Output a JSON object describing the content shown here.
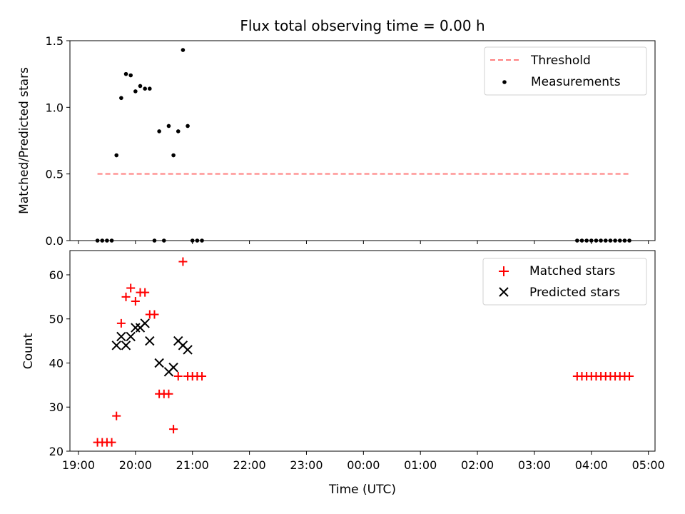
{
  "chart_data": [
    {
      "type": "scatter",
      "title": "Flux total observing time = 0.00 h",
      "ylabel": "Matched/Predicted stars",
      "xlabel": "",
      "xlim": [
        "18:51",
        "05:07"
      ],
      "ylim": [
        0,
        1.5
      ],
      "y_ticks": [
        "0.0",
        "0.5",
        "1.0",
        "1.5"
      ],
      "legend_position": "top-right",
      "grid": false,
      "series": [
        {
          "name": "Threshold",
          "kind": "line",
          "style": "dashed",
          "color": "#ff7f7f",
          "x": [
            "19:20",
            "04:40"
          ],
          "y": [
            0.5,
            0.5
          ]
        },
        {
          "name": "Measurements",
          "kind": "scatter",
          "marker": "dot",
          "color": "#000000",
          "x": [
            "19:20",
            "19:25",
            "19:30",
            "19:35",
            "19:40",
            "19:45",
            "19:50",
            "19:55",
            "20:00",
            "20:05",
            "20:10",
            "20:15",
            "20:20",
            "20:25",
            "20:30",
            "20:35",
            "20:40",
            "20:45",
            "20:50",
            "20:55",
            "21:00",
            "21:05",
            "21:10",
            "03:45",
            "03:50",
            "03:55",
            "04:00",
            "04:05",
            "04:10",
            "04:15",
            "04:20",
            "04:25",
            "04:30",
            "04:35",
            "04:40"
          ],
          "y": [
            0,
            0,
            0,
            0,
            0.64,
            1.07,
            1.25,
            1.24,
            1.12,
            1.16,
            1.14,
            1.14,
            0,
            0.82,
            0,
            0.86,
            0.64,
            0.82,
            1.43,
            0.86,
            0,
            0,
            0,
            0,
            0,
            0,
            0,
            0,
            0,
            0,
            0,
            0,
            0,
            0,
            0
          ]
        }
      ]
    },
    {
      "type": "scatter",
      "title": "",
      "ylabel": "Count",
      "xlabel": "Time (UTC)",
      "xlim": [
        "18:51",
        "05:07"
      ],
      "ylim": [
        20,
        65.5
      ],
      "y_ticks": [
        "20",
        "30",
        "40",
        "50",
        "60"
      ],
      "x_ticks": [
        "19:00",
        "20:00",
        "21:00",
        "22:00",
        "23:00",
        "00:00",
        "01:00",
        "02:00",
        "03:00",
        "04:00",
        "05:00"
      ],
      "legend_position": "top-right",
      "grid": false,
      "series": [
        {
          "name": "Matched stars",
          "kind": "scatter",
          "marker": "plus",
          "color": "#ff0000",
          "x": [
            "19:20",
            "19:25",
            "19:30",
            "19:35",
            "19:40",
            "19:45",
            "19:50",
            "19:55",
            "20:00",
            "20:05",
            "20:10",
            "20:15",
            "20:20",
            "20:25",
            "20:30",
            "20:35",
            "20:40",
            "20:45",
            "20:50",
            "20:55",
            "21:00",
            "21:05",
            "21:10",
            "03:45",
            "03:50",
            "03:55",
            "04:00",
            "04:05",
            "04:10",
            "04:15",
            "04:20",
            "04:25",
            "04:30",
            "04:35",
            "04:40"
          ],
          "y": [
            22,
            22,
            22,
            22,
            28,
            49,
            55,
            57,
            54,
            56,
            56,
            51,
            51,
            33,
            33,
            33,
            25,
            37,
            63,
            37,
            37,
            37,
            37,
            37,
            37,
            37,
            37,
            37,
            37,
            37,
            37,
            37,
            37,
            37,
            37
          ]
        },
        {
          "name": "Predicted stars",
          "kind": "scatter",
          "marker": "x",
          "color": "#000000",
          "x": [
            "19:40",
            "19:45",
            "19:50",
            "19:55",
            "20:00",
            "20:05",
            "20:10",
            "20:15",
            "20:25",
            "20:35",
            "20:40",
            "20:45",
            "20:50",
            "20:55"
          ],
          "y": [
            44,
            46,
            44,
            46,
            48,
            48,
            49,
            45,
            40,
            38,
            39,
            45,
            44,
            43
          ]
        }
      ]
    }
  ],
  "colors": {
    "threshold": "#ff7f7f",
    "measurements": "#000000",
    "matched": "#ff0000",
    "predicted": "#000000"
  }
}
